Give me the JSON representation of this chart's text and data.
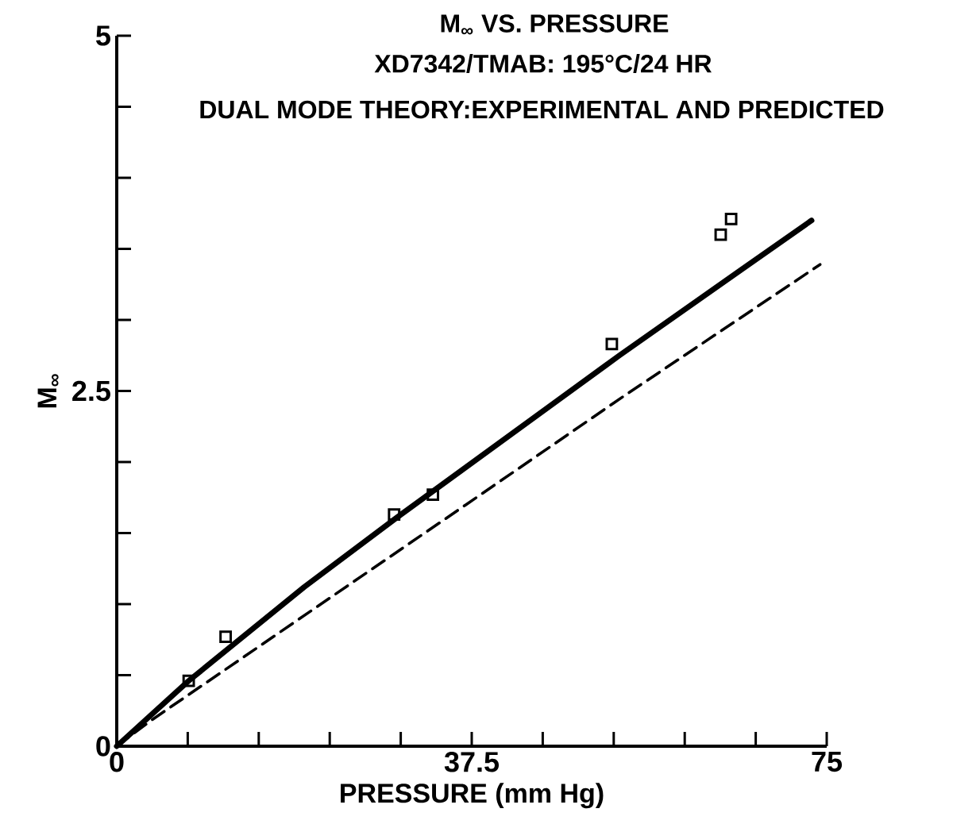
{
  "chart_data": {
    "type": "scatter",
    "title": "M$_{∞}$ VS. PRESSURE",
    "subtitle": "XD7342/TMAB: 195°C/24 HR",
    "annotations": [
      "DUAL MODE THEORY:EXPERIMENTAL AND PREDICTED"
    ],
    "xlabel": "PRESSURE (mm Hg)",
    "ylabel": "M$_{∞}$",
    "xlim": [
      0,
      75
    ],
    "ylim": [
      0,
      5
    ],
    "xticks": [
      0,
      37.5,
      75
    ],
    "yticks": [
      0,
      2.5,
      5
    ],
    "grid": false,
    "series": [
      {
        "type": "scatter",
        "marker": "square",
        "color": "#000000",
        "x": [
          7.6,
          11.5,
          29.3,
          33.4,
          52.3,
          63.8,
          64.9
        ],
        "values": [
          0.46,
          0.77,
          1.63,
          1.77,
          2.83,
          3.6,
          3.71
        ]
      },
      {
        "type": "line",
        "marker": "none",
        "line_style": "solid",
        "color": "#000000",
        "x": [
          0,
          7.6,
          19.8,
          29.4,
          53.1,
          65.9,
          73.4
        ],
        "values": [
          0,
          0.46,
          1.12,
          1.6,
          2.75,
          3.35,
          3.7
        ]
      },
      {
        "type": "line",
        "marker": "none",
        "line_style": "dashed",
        "color": "#000000",
        "x": [
          0,
          3.6,
          36.9,
          53.7,
          74.3
        ],
        "values": [
          0,
          0.18,
          1.7,
          2.47,
          3.39
        ]
      }
    ]
  }
}
